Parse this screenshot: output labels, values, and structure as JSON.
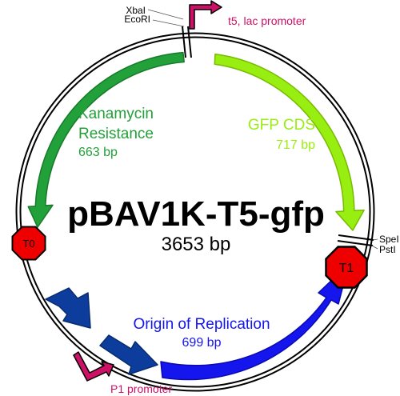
{
  "plasmid": {
    "name": "pBAV1K-T5-gfp",
    "size": "3653 bp"
  },
  "features": {
    "kanamycin": {
      "name": "Kanamycin",
      "name2": "Resistance",
      "size": "663 bp",
      "color": "#22a03a"
    },
    "gfp": {
      "name": "GFP CDS",
      "size": "717 bp",
      "color": "#99ee11"
    },
    "ori": {
      "name": "Origin of Replication",
      "size": "699 bp",
      "color": "#1515ee"
    },
    "dark_blue": {
      "color": "#0d3d9c"
    }
  },
  "sites": {
    "xbai": "XbaI",
    "ecori": "EcoRI",
    "spei": "SpeI",
    "psti": "PstI"
  },
  "promoters": {
    "t5lac": "t5, lac promoter",
    "p1": "P1 promoter",
    "color": "#cc1166"
  },
  "terminators": {
    "t0": "T0",
    "t1": "T1",
    "color": "#ee0000"
  }
}
